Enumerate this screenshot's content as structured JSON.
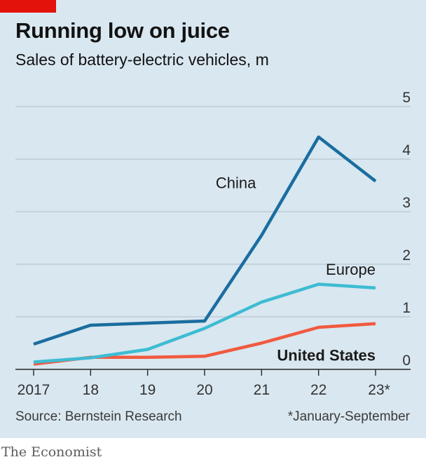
{
  "title": "Running low on juice",
  "subtitle": "Sales of battery-electric vehicles, m",
  "source": "Source: Bernstein Research",
  "footnote": "*January-September",
  "brand": "The Economist",
  "colors": {
    "background": "#d9e7f0",
    "accent": "#e3120b",
    "china": "#1a6d9f",
    "europe": "#3ebcd2",
    "us": "#f15a40",
    "grid": "#b7c6cf"
  },
  "chart_data": {
    "type": "line",
    "title": "Running low on juice",
    "subtitle": "Sales of battery-electric vehicles, m",
    "x": [
      "2017",
      "18",
      "19",
      "20",
      "21",
      "22",
      "23*"
    ],
    "ylim": [
      0,
      5
    ],
    "yticks": [
      0,
      1,
      2,
      3,
      4,
      5
    ],
    "grid": true,
    "series": [
      {
        "name": "China",
        "color": "#1a6d9f",
        "values": [
          0.48,
          0.84,
          0.88,
          0.92,
          2.55,
          4.42,
          3.58
        ]
      },
      {
        "name": "Europe",
        "color": "#3ebcd2",
        "values": [
          0.14,
          0.22,
          0.38,
          0.78,
          1.28,
          1.62,
          1.55
        ]
      },
      {
        "name": "United States",
        "color": "#f15a40",
        "values": [
          0.1,
          0.23,
          0.23,
          0.25,
          0.5,
          0.8,
          0.87
        ]
      }
    ]
  }
}
